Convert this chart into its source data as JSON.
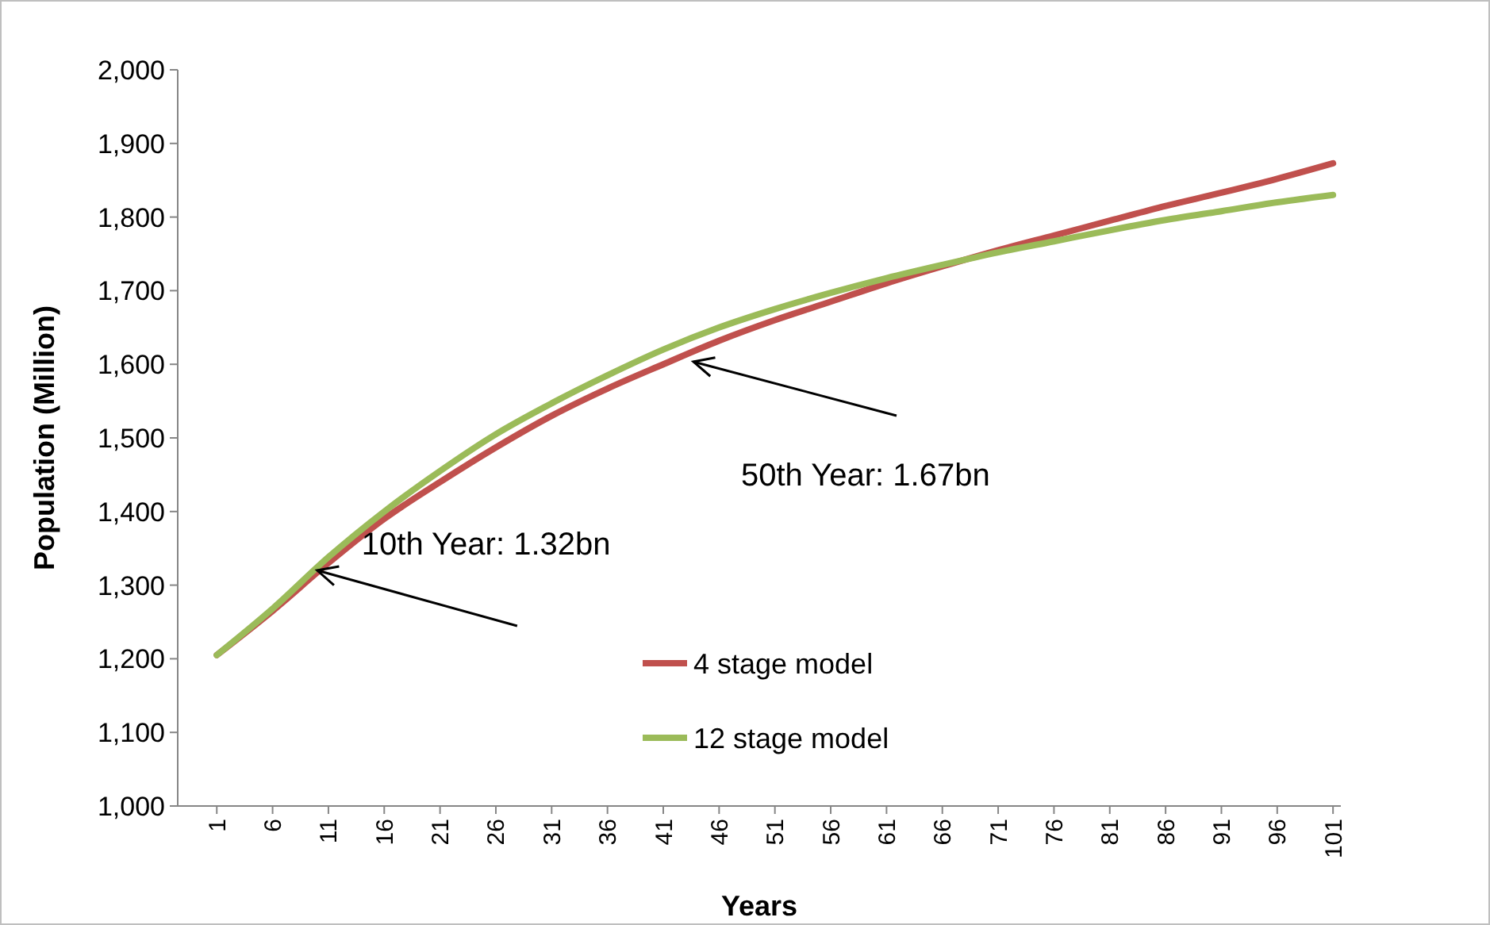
{
  "chart_data": {
    "type": "line",
    "xlabel": "Years",
    "ylabel": "Population (Million)",
    "xlim": [
      -2.5,
      101.7
    ],
    "xticks": [
      1,
      6,
      11,
      16,
      21,
      26,
      31,
      36,
      41,
      46,
      51,
      56,
      61,
      66,
      71,
      76,
      81,
      86,
      91,
      96,
      101
    ],
    "ylim": [
      1000,
      2000
    ],
    "yticks": [
      {
        "value": 1000,
        "label": "1,000"
      },
      {
        "value": 1100,
        "label": "1,100"
      },
      {
        "value": 1200,
        "label": "1,200"
      },
      {
        "value": 1300,
        "label": "1,300"
      },
      {
        "value": 1400,
        "label": "1,400"
      },
      {
        "value": 1500,
        "label": "1,500"
      },
      {
        "value": 1600,
        "label": "1,600"
      },
      {
        "value": 1700,
        "label": "1,700"
      },
      {
        "value": 1800,
        "label": "1,800"
      },
      {
        "value": 1900,
        "label": "1,900"
      },
      {
        "value": 2000,
        "label": "2,000"
      }
    ],
    "grid": false,
    "legend": "bottom",
    "x": [
      1,
      6,
      11,
      16,
      21,
      26,
      31,
      36,
      41,
      46,
      51,
      56,
      61,
      66,
      71,
      76,
      81,
      86,
      91,
      96,
      101
    ],
    "series": [
      {
        "name": "4 stage model",
        "color": "#c0504d",
        "values": [
          1205,
          1265,
          1330,
          1390,
          1440,
          1487,
          1530,
          1567,
          1600,
          1632,
          1660,
          1685,
          1710,
          1733,
          1755,
          1775,
          1795,
          1815,
          1833,
          1852,
          1873
        ]
      },
      {
        "name": "12 stage model",
        "color": "#9bbb59",
        "values": [
          1205,
          1268,
          1338,
          1400,
          1455,
          1505,
          1547,
          1585,
          1620,
          1650,
          1675,
          1697,
          1717,
          1735,
          1752,
          1767,
          1782,
          1796,
          1808,
          1820,
          1830
        ]
      }
    ],
    "annotations": [
      {
        "text": "10th Year: 1.32bn",
        "x": 10,
        "y": 1320
      },
      "50th Year: 1.67bn"
    ]
  }
}
